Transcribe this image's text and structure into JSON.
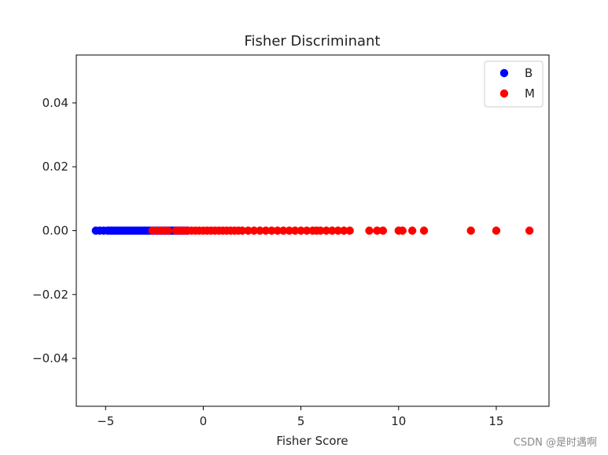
{
  "chart_data": {
    "type": "scatter",
    "title": "Fisher Discriminant",
    "xlabel": "Fisher Score",
    "ylabel": "",
    "xlim": [
      -6.5,
      17.7
    ],
    "ylim": [
      -0.055,
      0.055
    ],
    "xticks": [
      -5,
      0,
      5,
      10,
      15
    ],
    "xtick_labels": [
      "−5",
      "0",
      "5",
      "10",
      "15"
    ],
    "yticks": [
      0.04,
      0.02,
      0.0,
      -0.02,
      -0.04
    ],
    "ytick_labels": [
      "0.04",
      "0.02",
      "0.00",
      "−0.02",
      "−0.04"
    ],
    "grid": false,
    "legend_position": "top-right",
    "series": [
      {
        "name": "B",
        "color": "#0000ff",
        "x": [
          -5.5,
          -5.3,
          -5.1,
          -4.9,
          -4.8,
          -4.7,
          -4.6,
          -4.5,
          -4.4,
          -4.3,
          -4.2,
          -4.1,
          -4.0,
          -3.9,
          -3.8,
          -3.7,
          -3.6,
          -3.5,
          -3.4,
          -3.3,
          -3.2,
          -3.1,
          -3.0,
          -2.9,
          -2.8,
          -2.7,
          -2.6,
          -2.5,
          -2.4,
          -2.3,
          -2.2,
          -2.1,
          -2.0,
          -1.9,
          -1.8,
          -1.7,
          -1.6,
          -1.5,
          -1.4,
          -1.3,
          -1.2,
          -1.1,
          -1.0,
          -0.9,
          -0.8
        ],
        "y": [
          0,
          0,
          0,
          0,
          0,
          0,
          0,
          0,
          0,
          0,
          0,
          0,
          0,
          0,
          0,
          0,
          0,
          0,
          0,
          0,
          0,
          0,
          0,
          0,
          0,
          0,
          0,
          0,
          0,
          0,
          0,
          0,
          0,
          0,
          0,
          0,
          0,
          0,
          0,
          0,
          0,
          0,
          0,
          0,
          0
        ]
      },
      {
        "name": "M",
        "color": "#ff0000",
        "x": [
          -2.6,
          -2.4,
          -2.2,
          -2.0,
          -1.8,
          -1.4,
          -1.2,
          -1.0,
          -0.8,
          -0.6,
          -0.4,
          -0.2,
          0.0,
          0.2,
          0.4,
          0.6,
          0.8,
          1.0,
          1.2,
          1.4,
          1.6,
          1.8,
          2.0,
          2.3,
          2.6,
          2.9,
          3.2,
          3.5,
          3.8,
          4.1,
          4.4,
          4.7,
          5.0,
          5.3,
          5.6,
          5.8,
          6.0,
          6.3,
          6.6,
          6.9,
          7.2,
          7.5,
          8.5,
          8.9,
          9.2,
          10.0,
          10.2,
          10.7,
          11.3,
          13.7,
          15.0,
          16.7
        ],
        "y": [
          0,
          0,
          0,
          0,
          0,
          0,
          0,
          0,
          0,
          0,
          0,
          0,
          0,
          0,
          0,
          0,
          0,
          0,
          0,
          0,
          0,
          0,
          0,
          0,
          0,
          0,
          0,
          0,
          0,
          0,
          0,
          0,
          0,
          0,
          0,
          0,
          0,
          0,
          0,
          0,
          0,
          0,
          0,
          0,
          0,
          0,
          0,
          0,
          0,
          0,
          0,
          0
        ]
      }
    ]
  },
  "watermark": "CSDN @是时遇啊"
}
